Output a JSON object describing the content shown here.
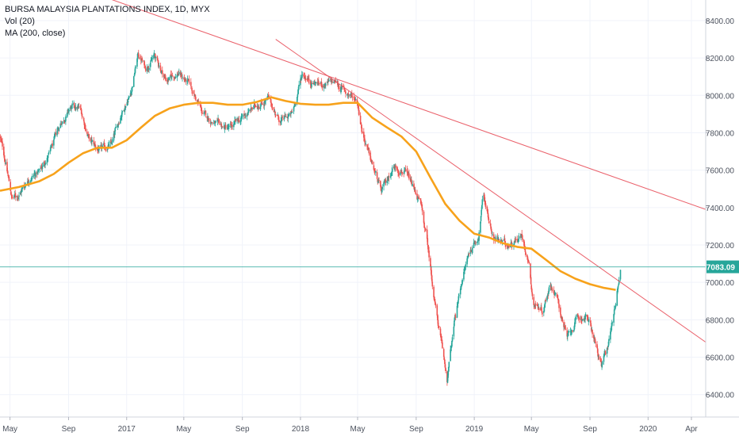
{
  "legend": {
    "title": "BURSA MALAYSIA PLANTATIONS INDEX, 1D, MYX",
    "vol": "Vol (20)",
    "ma": "MA (200, close)"
  },
  "colors": {
    "up": "#26a69a",
    "down": "#ef5350",
    "ma": "#f7a21b",
    "trendline": "#e8505b",
    "last_price_line": "#26a69a",
    "grid": "#f0f3fa",
    "axis_text": "#4c525e"
  },
  "chart_data": {
    "type": "candlestick",
    "title": "BURSA MALAYSIA PLANTATIONS INDEX, 1D, MYX",
    "xlabel": "",
    "ylabel": "",
    "y_ticks": [
      6400,
      6600,
      6800,
      7000,
      7200,
      7400,
      7600,
      7800,
      8000,
      8200,
      8400
    ],
    "y_tick_labels": [
      "6400.00",
      "6600.00",
      "6800.00",
      "7000.00",
      "7200.00",
      "7400.00",
      "7600.00",
      "7800.00",
      "8000.00",
      "8200.00",
      "8400.00"
    ],
    "ylim": [
      6280,
      8510
    ],
    "x_range": [
      "2016-04-10",
      "2020-05-01"
    ],
    "x_ticks": [
      {
        "label": "May",
        "date": "2016-05-01"
      },
      {
        "label": "Sep",
        "date": "2016-09-01"
      },
      {
        "label": "2017",
        "date": "2017-01-01"
      },
      {
        "label": "May",
        "date": "2017-05-01"
      },
      {
        "label": "Sep",
        "date": "2017-09-01"
      },
      {
        "label": "2018",
        "date": "2018-01-01"
      },
      {
        "label": "May",
        "date": "2018-05-01"
      },
      {
        "label": "Sep",
        "date": "2018-09-01"
      },
      {
        "label": "2019",
        "date": "2019-01-01"
      },
      {
        "label": "May",
        "date": "2019-05-01"
      },
      {
        "label": "Sep",
        "date": "2019-09-01"
      },
      {
        "label": "2020",
        "date": "2020-01-01"
      },
      {
        "label": "Apr",
        "date": "2020-04-01"
      }
    ],
    "last_price": 7083.09,
    "last_price_label": "7083.09",
    "price_path": [
      [
        "2016-04-10",
        7780
      ],
      [
        "2016-04-22",
        7640
      ],
      [
        "2016-05-05",
        7450
      ],
      [
        "2016-05-20",
        7470
      ],
      [
        "2016-06-10",
        7560
      ],
      [
        "2016-07-01",
        7590
      ],
      [
        "2016-07-25",
        7700
      ],
      [
        "2016-08-15",
        7850
      ],
      [
        "2016-09-05",
        7930
      ],
      [
        "2016-09-25",
        7930
      ],
      [
        "2016-10-15",
        7760
      ],
      [
        "2016-11-05",
        7700
      ],
      [
        "2016-12-01",
        7740
      ],
      [
        "2016-12-20",
        7900
      ],
      [
        "2017-01-10",
        8020
      ],
      [
        "2017-01-25",
        8220
      ],
      [
        "2017-02-10",
        8150
      ],
      [
        "2017-03-01",
        8210
      ],
      [
        "2017-03-25",
        8080
      ],
      [
        "2017-04-20",
        8120
      ],
      [
        "2017-05-15",
        8050
      ],
      [
        "2017-06-10",
        7900
      ],
      [
        "2017-07-10",
        7840
      ],
      [
        "2017-08-05",
        7820
      ],
      [
        "2017-09-01",
        7880
      ],
      [
        "2017-10-01",
        7950
      ],
      [
        "2017-10-25",
        7980
      ],
      [
        "2017-11-20",
        7860
      ],
      [
        "2017-12-15",
        7900
      ],
      [
        "2018-01-05",
        8120
      ],
      [
        "2018-01-25",
        8070
      ],
      [
        "2018-02-20",
        8060
      ],
      [
        "2018-03-15",
        8070
      ],
      [
        "2018-04-10",
        8010
      ],
      [
        "2018-04-30",
        7980
      ],
      [
        "2018-05-10",
        7820
      ],
      [
        "2018-05-25",
        7680
      ],
      [
        "2018-06-20",
        7480
      ],
      [
        "2018-07-15",
        7620
      ],
      [
        "2018-08-05",
        7600
      ],
      [
        "2018-08-25",
        7510
      ],
      [
        "2018-09-10",
        7420
      ],
      [
        "2018-09-25",
        7200
      ],
      [
        "2018-10-10",
        6900
      ],
      [
        "2018-10-25",
        6650
      ],
      [
        "2018-11-05",
        6480
      ],
      [
        "2018-11-20",
        6780
      ],
      [
        "2018-12-05",
        7000
      ],
      [
        "2018-12-20",
        7150
      ],
      [
        "2019-01-10",
        7250
      ],
      [
        "2019-01-20",
        7470
      ],
      [
        "2019-02-10",
        7240
      ],
      [
        "2019-03-10",
        7200
      ],
      [
        "2019-04-10",
        7250
      ],
      [
        "2019-04-25",
        7120
      ],
      [
        "2019-05-05",
        6890
      ],
      [
        "2019-05-25",
        6850
      ],
      [
        "2019-06-10",
        7000
      ],
      [
        "2019-06-25",
        6900
      ],
      [
        "2019-07-15",
        6700
      ],
      [
        "2019-08-05",
        6800
      ],
      [
        "2019-08-25",
        6820
      ],
      [
        "2019-09-10",
        6700
      ],
      [
        "2019-09-25",
        6540
      ],
      [
        "2019-10-10",
        6680
      ],
      [
        "2019-10-25",
        6900
      ],
      [
        "2019-11-04",
        7083
      ]
    ],
    "ma_path": [
      [
        "2016-04-10",
        7490
      ],
      [
        "2016-05-20",
        7510
      ],
      [
        "2016-07-01",
        7540
      ],
      [
        "2016-08-01",
        7580
      ],
      [
        "2016-09-01",
        7640
      ],
      [
        "2016-10-01",
        7690
      ],
      [
        "2016-11-01",
        7720
      ],
      [
        "2016-12-01",
        7720
      ],
      [
        "2017-01-01",
        7760
      ],
      [
        "2017-02-01",
        7830
      ],
      [
        "2017-03-01",
        7890
      ],
      [
        "2017-04-01",
        7930
      ],
      [
        "2017-05-01",
        7950
      ],
      [
        "2017-06-01",
        7960
      ],
      [
        "2017-07-01",
        7960
      ],
      [
        "2017-08-01",
        7950
      ],
      [
        "2017-09-01",
        7950
      ],
      [
        "2017-10-01",
        7965
      ],
      [
        "2017-11-01",
        7990
      ],
      [
        "2017-12-01",
        7970
      ],
      [
        "2018-01-01",
        7955
      ],
      [
        "2018-02-01",
        7950
      ],
      [
        "2018-03-01",
        7950
      ],
      [
        "2018-04-01",
        7960
      ],
      [
        "2018-05-01",
        7960
      ],
      [
        "2018-06-01",
        7880
      ],
      [
        "2018-07-01",
        7830
      ],
      [
        "2018-08-01",
        7780
      ],
      [
        "2018-09-01",
        7700
      ],
      [
        "2018-10-01",
        7560
      ],
      [
        "2018-11-01",
        7420
      ],
      [
        "2018-12-01",
        7330
      ],
      [
        "2019-01-01",
        7260
      ],
      [
        "2019-02-01",
        7240
      ],
      [
        "2019-03-01",
        7210
      ],
      [
        "2019-04-01",
        7190
      ],
      [
        "2019-05-01",
        7180
      ],
      [
        "2019-06-01",
        7120
      ],
      [
        "2019-07-01",
        7060
      ],
      [
        "2019-08-01",
        7020
      ],
      [
        "2019-09-01",
        6990
      ],
      [
        "2019-10-01",
        6970
      ],
      [
        "2019-10-25",
        6960
      ]
    ],
    "trendlines": [
      {
        "from": [
          "2016-08-25",
          8600
        ],
        "to": [
          "2020-05-01",
          7390
        ]
      },
      {
        "from": [
          "2017-11-10",
          8300
        ],
        "to": [
          "2020-05-01",
          6680
        ]
      }
    ]
  }
}
